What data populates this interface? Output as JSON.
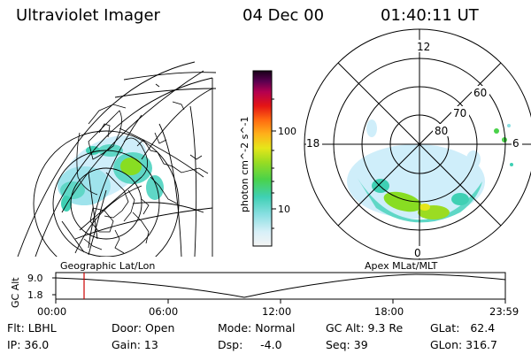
{
  "header": {
    "instrument": "Ultraviolet Imager",
    "date": "04 Dec 00",
    "time": "01:40:11 UT"
  },
  "colorbar": {
    "label": "photon cm^-2 s^-1",
    "tick_labels": [
      "100",
      "10"
    ]
  },
  "polar_plot": {
    "mlt_labels": [
      "12",
      "18",
      "6",
      "0"
    ],
    "lat_labels": [
      "60",
      "70",
      "80"
    ]
  },
  "timeline": {
    "left_label": "Geographic Lat/Lon",
    "right_label": "Apex MLat/MLT",
    "y_axis_label": "GC Alt",
    "y_ticks": [
      "9.0",
      "1.8"
    ],
    "x_ticks": [
      "00:00",
      "06:00",
      "12:00",
      "18:00",
      "23:59"
    ]
  },
  "info": {
    "filter": "Flt: LBHL",
    "ip": "IP: 36.0",
    "door": "Door: Open",
    "gain": "Gain: 13",
    "mode": "Mode: Normal",
    "dsp": "Dsp:     -4.0",
    "gc_alt": "GC Alt: 9.3 Re",
    "seq": "Seq: 39",
    "glat": "GLat:   62.4",
    "glon": "GLon: 316.7"
  },
  "colors": {
    "cursor": "#cc0000",
    "aurora_low": "#cfeefa",
    "aurora_mid": "#5fd7c6",
    "aurora_high": "#88dd22"
  }
}
